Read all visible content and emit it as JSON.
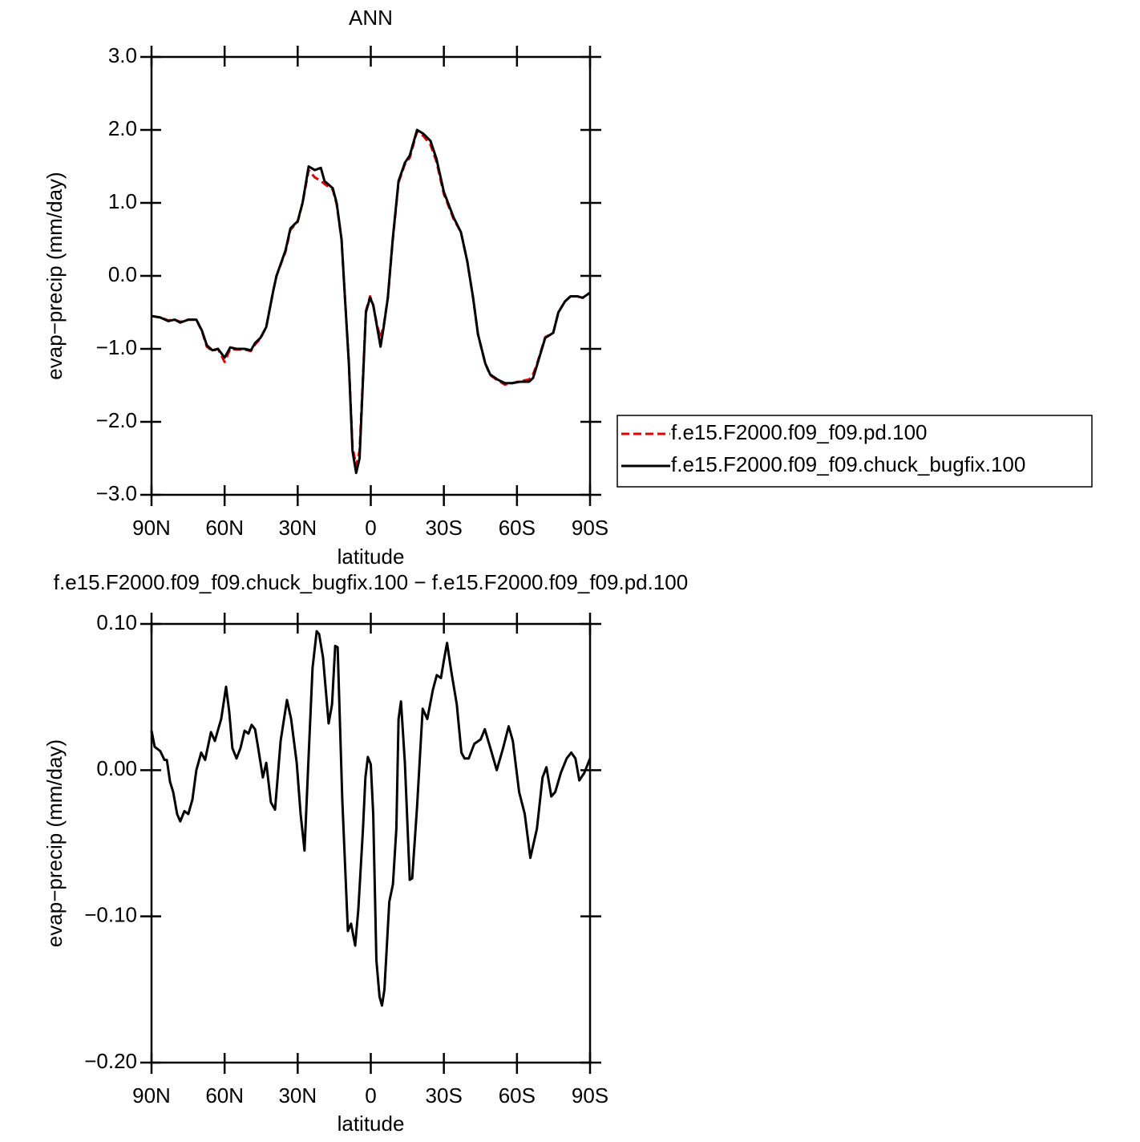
{
  "chart_data": [
    {
      "type": "line",
      "title": "ANN",
      "xlabel": "latitude",
      "ylabel": "evap−precip (mm/day)",
      "x": [
        90,
        86.4,
        83.1,
        80.5,
        78.2,
        74.9,
        71.6,
        69.3,
        67.3,
        65,
        62.7,
        60,
        57.7,
        55.1,
        51.8,
        49.2,
        47.5,
        45.3,
        42.9,
        40,
        38.7,
        35,
        33,
        30,
        28,
        25.5,
        23,
        20.5,
        19,
        15.6,
        14,
        12,
        10.6,
        9,
        7.5,
        6,
        4.6,
        3.3,
        2,
        0.3,
        -1,
        -2.6,
        -4,
        -5.3,
        -7,
        -9,
        -11.4,
        -14,
        -16,
        -19,
        -21.5,
        -24.5,
        -27,
        -30,
        -34,
        -37,
        -39.6,
        -42,
        -44,
        -47,
        -49,
        -52,
        -55,
        -58,
        -61.6,
        -65,
        -66.6,
        -68,
        -71.6,
        -74.9,
        -77,
        -79.7,
        -82,
        -84.7,
        -87,
        -90
      ],
      "xlim": [
        90,
        -90
      ],
      "xticks": [
        {
          "value": 90,
          "label": "90N"
        },
        {
          "value": 60,
          "label": "60N"
        },
        {
          "value": 30,
          "label": "30N"
        },
        0,
        {
          "value": -30,
          "label": "30S"
        },
        {
          "value": -60,
          "label": "60S"
        },
        {
          "value": -90,
          "label": "90S"
        }
      ],
      "ylim": [
        -3,
        3
      ],
      "yticks": [
        {
          "value": 3,
          "label": "3.0"
        },
        {
          "value": 2,
          "label": "2.0"
        },
        {
          "value": 1,
          "label": "1.0"
        },
        {
          "value": 0,
          "label": "0.0"
        },
        {
          "value": -1,
          "label": "−1.0"
        },
        {
          "value": -2,
          "label": "−2.0"
        },
        {
          "value": -3,
          "label": "−3.0"
        }
      ],
      "legend": "right",
      "series": [
        {
          "name": "f.e15.F2000.f09_f09.pd.100",
          "color": "#e00000",
          "dashed": true,
          "values": [
            -0.55,
            -0.57,
            -0.61,
            -0.6,
            -0.63,
            -0.6,
            -0.6,
            -0.76,
            -0.97,
            -1.03,
            -1.0,
            -1.18,
            -1.0,
            -1.01,
            -1.01,
            -1.03,
            -0.94,
            -0.86,
            -0.7,
            -0.2,
            0.0,
            0.33,
            0.63,
            0.74,
            1.0,
            1.45,
            1.35,
            1.3,
            1.26,
            1.18,
            0.98,
            0.5,
            -0.3,
            -1.18,
            -2.35,
            -2.6,
            -2.4,
            -1.45,
            -0.48,
            -0.28,
            -0.4,
            -0.68,
            -0.85,
            -0.68,
            -0.3,
            0.48,
            1.28,
            1.53,
            1.62,
            1.98,
            1.92,
            1.8,
            1.56,
            1.12,
            0.78,
            0.6,
            0.2,
            -0.3,
            -0.8,
            -1.2,
            -1.36,
            -1.43,
            -1.49,
            -1.47,
            -1.44,
            -1.42,
            -1.35,
            -1.23,
            -0.84,
            -0.78,
            -0.5,
            -0.35,
            -0.28,
            -0.28,
            -0.3,
            -0.23
          ]
        },
        {
          "name": "f.e15.F2000.f09_f09.chuck_bugfix.100",
          "color": "#000000",
          "dashed": false,
          "values": [
            -0.55,
            -0.57,
            -0.62,
            -0.6,
            -0.64,
            -0.6,
            -0.6,
            -0.75,
            -0.95,
            -1.02,
            -1.0,
            -1.12,
            -0.98,
            -1.0,
            -1.0,
            -1.02,
            -0.92,
            -0.85,
            -0.7,
            -0.2,
            0.0,
            0.35,
            0.65,
            0.75,
            1.0,
            1.5,
            1.45,
            1.48,
            1.3,
            1.2,
            1.0,
            0.5,
            -0.3,
            -1.2,
            -2.4,
            -2.7,
            -2.5,
            -1.5,
            -0.5,
            -0.3,
            -0.4,
            -0.7,
            -0.97,
            -0.7,
            -0.3,
            0.5,
            1.3,
            1.55,
            1.65,
            2.0,
            1.95,
            1.85,
            1.6,
            1.15,
            0.8,
            0.6,
            0.2,
            -0.3,
            -0.8,
            -1.2,
            -1.35,
            -1.42,
            -1.47,
            -1.47,
            -1.45,
            -1.45,
            -1.4,
            -1.25,
            -0.85,
            -0.78,
            -0.5,
            -0.35,
            -0.28,
            -0.28,
            -0.3,
            -0.23
          ]
        }
      ]
    },
    {
      "type": "line",
      "title": "f.e15.F2000.f09_f09.chuck_bugfix.100 − f.e15.F2000.f09_f09.pd.100",
      "xlabel": "latitude",
      "ylabel": "evap−precip (mm/day)",
      "x": [
        90,
        88.7,
        86.4,
        84.7,
        83.7,
        82.4,
        81.1,
        79.5,
        78.2,
        76.5,
        74.9,
        73.2,
        71.6,
        69.6,
        68,
        65.6,
        64,
        61.4,
        59.4,
        58.1,
        56.8,
        55.1,
        53.5,
        51.8,
        50.2,
        48.9,
        47.5,
        46.2,
        44.3,
        42.9,
        41,
        39.3,
        37,
        34.4,
        32.7,
        30.4,
        28.8,
        27.2,
        25.5,
        23.9,
        22.2,
        21.2,
        19.6,
        17.3,
        15.9,
        14.6,
        13.6,
        11.7,
        9.4,
        8.1,
        6.4,
        5.1,
        3.2,
        2.2,
        1.2,
        0,
        -1,
        -2.3,
        -3.6,
        -4.6,
        -5.6,
        -7.6,
        -9.1,
        -10.5,
        -11.4,
        -12.4,
        -14,
        -16,
        -17,
        -19,
        -21.3,
        -23.2,
        -25.5,
        -27.1,
        -28.8,
        -30,
        -31.3,
        -33,
        -35.3,
        -37.2,
        -38.5,
        -40.2,
        -42.5,
        -45.1,
        -46.8,
        -49.1,
        -51.7,
        -54.3,
        -56.6,
        -58.3,
        -60.9,
        -63.2,
        -65.5,
        -68.2,
        -70.5,
        -72.1,
        -74.1,
        -75.7,
        -78,
        -80.4,
        -82.3,
        -84,
        -85.6,
        -87.6,
        -90
      ],
      "xlim": [
        90,
        -90
      ],
      "xticks": [
        {
          "value": 90,
          "label": "90N"
        },
        {
          "value": 60,
          "label": "60N"
        },
        {
          "value": 30,
          "label": "30N"
        },
        0,
        {
          "value": -30,
          "label": "30S"
        },
        {
          "value": -60,
          "label": "60S"
        },
        {
          "value": -90,
          "label": "90S"
        }
      ],
      "ylim": [
        -0.2,
        0.1
      ],
      "yticks": [
        {
          "value": 0.1,
          "label": "0.10"
        },
        {
          "value": 0,
          "label": "0.00"
        },
        {
          "value": -0.1,
          "label": "−0.10"
        },
        {
          "value": -0.2,
          "label": "−0.20"
        }
      ],
      "color": "#000000",
      "values": [
        0.027,
        0.016,
        0.013,
        0.007,
        0.007,
        -0.008,
        -0.015,
        -0.03,
        -0.035,
        -0.028,
        -0.03,
        -0.02,
        0.0,
        0.012,
        0.007,
        0.026,
        0.02,
        0.035,
        0.057,
        0.04,
        0.015,
        0.008,
        0.015,
        0.027,
        0.025,
        0.031,
        0.028,
        0.015,
        -0.005,
        0.005,
        -0.022,
        -0.027,
        0.02,
        0.048,
        0.035,
        0.005,
        -0.03,
        -0.055,
        0.01,
        0.07,
        0.095,
        0.093,
        0.077,
        0.032,
        0.045,
        0.085,
        0.084,
        -0.02,
        -0.11,
        -0.105,
        -0.12,
        -0.095,
        -0.04,
        -0.005,
        0.009,
        0.004,
        -0.03,
        -0.13,
        -0.155,
        -0.161,
        -0.15,
        -0.09,
        -0.078,
        -0.04,
        0.035,
        0.047,
        0.005,
        -0.075,
        -0.074,
        -0.025,
        0.042,
        0.035,
        0.055,
        0.065,
        0.063,
        0.075,
        0.087,
        0.068,
        0.045,
        0.012,
        0.008,
        0.008,
        0.018,
        0.021,
        0.028,
        0.015,
        0.0,
        0.015,
        0.03,
        0.02,
        -0.015,
        -0.03,
        -0.06,
        -0.04,
        -0.005,
        0.002,
        -0.018,
        -0.015,
        -0.002,
        0.008,
        0.012,
        0.008,
        -0.007,
        -0.002,
        0.008
      ]
    }
  ]
}
